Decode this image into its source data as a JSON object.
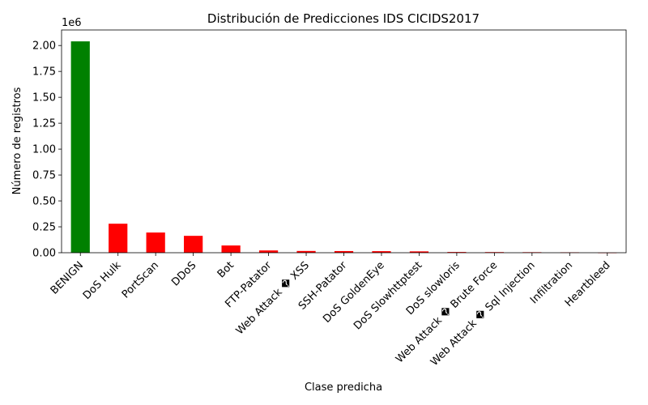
{
  "chart_data": {
    "type": "bar",
    "title": "Distribución de Predicciones IDS CICIDS2017",
    "xlabel": "Clase predicha",
    "ylabel": "Número de registros",
    "y_multiplier_label": "1e6",
    "categories": [
      "BENIGN",
      "DoS Hulk",
      "PortScan",
      "DDoS",
      "Bot",
      "FTP-Patator",
      "Web Attack � XSS",
      "SSH-Patator",
      "DoS GoldenEye",
      "DoS Slowhttptest",
      "DoS slowloris",
      "Web Attack � Brute Force",
      "Web Attack � Sql Injection",
      "Infiltration",
      "Heartbleed"
    ],
    "values": [
      2040000,
      280000,
      195000,
      163000,
      70000,
      22000,
      17000,
      16000,
      15000,
      13000,
      7000,
      6000,
      5000,
      4000,
      500
    ],
    "colors": [
      "#008000",
      "#ff0000",
      "#ff0000",
      "#ff0000",
      "#ff0000",
      "#ff0000",
      "#ff0000",
      "#ff0000",
      "#ff0000",
      "#ff0000",
      "#ff0000",
      "#ff0000",
      "#ff0000",
      "#ff0000",
      "#ff0000"
    ],
    "yticks": [
      "0.00",
      "0.25",
      "0.50",
      "0.75",
      "1.00",
      "1.25",
      "1.50",
      "1.75",
      "2.00"
    ],
    "ylim": [
      0,
      2150000
    ],
    "grid": false,
    "legend": "none"
  }
}
